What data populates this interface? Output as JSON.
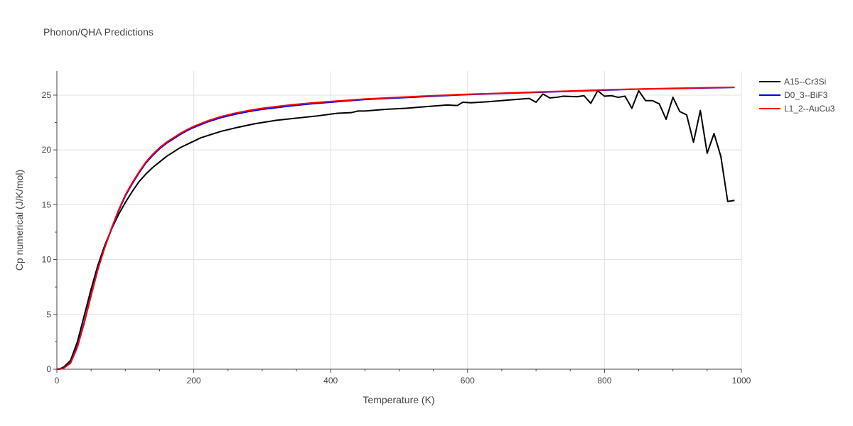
{
  "chart_data": {
    "type": "line",
    "title": "Phonon/QHA Predictions",
    "xlabel": "Temperature (K)",
    "ylabel": "Cp numerical (J/K/mol)",
    "xlim": [
      0,
      1000
    ],
    "ylim": [
      0,
      27.2
    ],
    "xticks": [
      0,
      200,
      400,
      600,
      800,
      1000
    ],
    "xtick_labels": [
      "0",
      "200",
      "400",
      "600",
      "800",
      "1000"
    ],
    "yticks": [
      0,
      5,
      10,
      15,
      20,
      25
    ],
    "ytick_labels": [
      "0",
      "5",
      "10",
      "15",
      "20",
      "25"
    ],
    "grid": true,
    "legend_position": "top-right",
    "series": [
      {
        "name": "A15--Cr3Si",
        "color": "#000000",
        "points": [
          [
            0,
            0
          ],
          [
            5,
            0.05
          ],
          [
            10,
            0.2
          ],
          [
            20,
            0.8
          ],
          [
            30,
            2.5
          ],
          [
            40,
            4.9
          ],
          [
            50,
            7.3
          ],
          [
            60,
            9.5
          ],
          [
            70,
            11.3
          ],
          [
            80,
            12.8
          ],
          [
            90,
            14.1
          ],
          [
            100,
            15.2
          ],
          [
            110,
            16.2
          ],
          [
            120,
            17.1
          ],
          [
            130,
            17.8
          ],
          [
            140,
            18.4
          ],
          [
            150,
            18.9
          ],
          [
            160,
            19.4
          ],
          [
            170,
            19.8
          ],
          [
            180,
            20.2
          ],
          [
            190,
            20.5
          ],
          [
            200,
            20.8
          ],
          [
            210,
            21.1
          ],
          [
            220,
            21.3
          ],
          [
            240,
            21.7
          ],
          [
            260,
            22.0
          ],
          [
            290,
            22.4
          ],
          [
            320,
            22.7
          ],
          [
            350,
            22.9
          ],
          [
            380,
            23.1
          ],
          [
            410,
            23.35
          ],
          [
            430,
            23.4
          ],
          [
            440,
            23.55
          ],
          [
            450,
            23.55
          ],
          [
            480,
            23.7
          ],
          [
            510,
            23.8
          ],
          [
            540,
            23.95
          ],
          [
            570,
            24.1
          ],
          [
            585,
            24.05
          ],
          [
            593,
            24.35
          ],
          [
            605,
            24.3
          ],
          [
            630,
            24.4
          ],
          [
            660,
            24.55
          ],
          [
            690,
            24.7
          ],
          [
            700,
            24.35
          ],
          [
            710,
            25.1
          ],
          [
            720,
            24.75
          ],
          [
            730,
            24.8
          ],
          [
            740,
            24.9
          ],
          [
            760,
            24.85
          ],
          [
            770,
            24.95
          ],
          [
            780,
            24.25
          ],
          [
            790,
            25.4
          ],
          [
            800,
            24.9
          ],
          [
            810,
            24.95
          ],
          [
            820,
            24.8
          ],
          [
            830,
            24.9
          ],
          [
            840,
            23.8
          ],
          [
            850,
            25.4
          ],
          [
            860,
            24.5
          ],
          [
            870,
            24.5
          ],
          [
            880,
            24.2
          ],
          [
            890,
            22.8
          ],
          [
            900,
            24.8
          ],
          [
            910,
            23.5
          ],
          [
            920,
            23.2
          ],
          [
            930,
            20.7
          ],
          [
            940,
            23.6
          ],
          [
            950,
            19.7
          ],
          [
            960,
            21.5
          ],
          [
            970,
            19.4
          ],
          [
            980,
            15.3
          ],
          [
            990,
            15.4
          ]
        ]
      },
      {
        "name": "D0_3--BiF3",
        "color": "#0000ff",
        "points": [
          [
            0,
            0
          ],
          [
            5,
            0.02
          ],
          [
            10,
            0.1
          ],
          [
            20,
            0.6
          ],
          [
            30,
            2.1
          ],
          [
            40,
            4.3
          ],
          [
            50,
            6.8
          ],
          [
            60,
            9.2
          ],
          [
            70,
            11.1
          ],
          [
            80,
            12.8
          ],
          [
            90,
            14.4
          ],
          [
            100,
            15.8
          ],
          [
            110,
            16.9
          ],
          [
            120,
            17.9
          ],
          [
            130,
            18.8
          ],
          [
            140,
            19.5
          ],
          [
            150,
            20.1
          ],
          [
            160,
            20.6
          ],
          [
            170,
            21.0
          ],
          [
            180,
            21.4
          ],
          [
            190,
            21.75
          ],
          [
            200,
            22.05
          ],
          [
            220,
            22.55
          ],
          [
            240,
            22.95
          ],
          [
            260,
            23.25
          ],
          [
            280,
            23.5
          ],
          [
            300,
            23.7
          ],
          [
            320,
            23.85
          ],
          [
            340,
            24.0
          ],
          [
            370,
            24.2
          ],
          [
            400,
            24.35
          ],
          [
            450,
            24.6
          ],
          [
            500,
            24.75
          ],
          [
            550,
            24.9
          ],
          [
            600,
            25.05
          ],
          [
            650,
            25.15
          ],
          [
            700,
            25.25
          ],
          [
            750,
            25.35
          ],
          [
            800,
            25.45
          ],
          [
            850,
            25.55
          ],
          [
            900,
            25.6
          ],
          [
            950,
            25.65
          ],
          [
            990,
            25.7
          ]
        ]
      },
      {
        "name": "L1_2--AuCu3",
        "color": "#ff0000",
        "points": [
          [
            0,
            0
          ],
          [
            5,
            0.02
          ],
          [
            10,
            0.1
          ],
          [
            20,
            0.55
          ],
          [
            30,
            2.0
          ],
          [
            40,
            4.2
          ],
          [
            50,
            6.7
          ],
          [
            60,
            9.1
          ],
          [
            70,
            11.1
          ],
          [
            80,
            12.9
          ],
          [
            90,
            14.5
          ],
          [
            100,
            15.9
          ],
          [
            110,
            17.0
          ],
          [
            120,
            18.0
          ],
          [
            130,
            18.9
          ],
          [
            140,
            19.6
          ],
          [
            150,
            20.2
          ],
          [
            160,
            20.7
          ],
          [
            170,
            21.1
          ],
          [
            180,
            21.5
          ],
          [
            190,
            21.85
          ],
          [
            200,
            22.15
          ],
          [
            220,
            22.65
          ],
          [
            240,
            23.05
          ],
          [
            260,
            23.35
          ],
          [
            280,
            23.6
          ],
          [
            300,
            23.8
          ],
          [
            320,
            23.95
          ],
          [
            340,
            24.1
          ],
          [
            370,
            24.28
          ],
          [
            400,
            24.42
          ],
          [
            450,
            24.65
          ],
          [
            500,
            24.8
          ],
          [
            550,
            24.95
          ],
          [
            600,
            25.08
          ],
          [
            650,
            25.18
          ],
          [
            700,
            25.28
          ],
          [
            750,
            25.38
          ],
          [
            800,
            25.48
          ],
          [
            850,
            25.56
          ],
          [
            900,
            25.62
          ],
          [
            950,
            25.68
          ],
          [
            990,
            25.72
          ]
        ]
      }
    ]
  }
}
